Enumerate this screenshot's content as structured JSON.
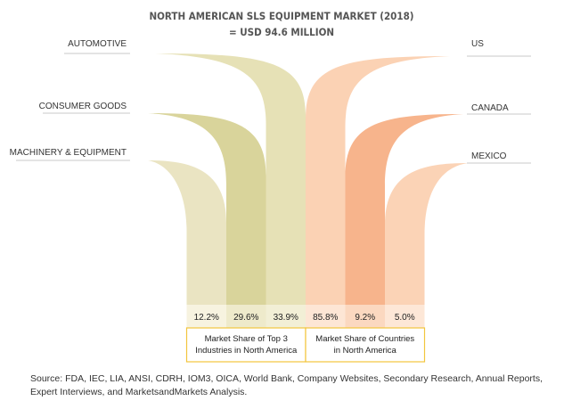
{
  "title": "NORTH AMERICAN SLS EQUIPMENT MARKET (2018)",
  "subtitle": "= USD 94.6 MILLION",
  "chart_data": {
    "type": "bar",
    "groups": [
      {
        "name": "Market Share of Top 3 Industries in North America",
        "name_lines": [
          "Market Share of Top 3",
          "Industries in North America"
        ],
        "categories": [
          "MACHINERY & EQUIPMENT",
          "CONSUMER GOODS",
          "AUTOMOTIVE"
        ],
        "values": [
          12.2,
          29.6,
          33.9
        ],
        "value_labels": [
          "12.2%",
          "29.6%",
          "33.9%"
        ],
        "colors": [
          "#eae4c2",
          "#d9d49b",
          "#e6e1b6"
        ]
      },
      {
        "name": "Market Share of Countries in North America",
        "name_lines": [
          "Market Share of Countries",
          "in North America"
        ],
        "categories": [
          "US",
          "CANADA",
          "MEXICO"
        ],
        "values": [
          85.8,
          9.2,
          5.0
        ],
        "value_labels": [
          "85.8%",
          "9.2%",
          "5.0%"
        ],
        "colors": [
          "#fbd2b4",
          "#f7b48c",
          "#fbd3b6"
        ]
      }
    ],
    "accent": "#f2c53d",
    "unit": "%"
  },
  "source": "Source: FDA, IEC, LIA, ANSI, CDRH, IOM3, OICA, World Bank, Company Websites, Secondary Research, Annual Reports, Expert Interviews, and MarketsandMarkets Analysis."
}
